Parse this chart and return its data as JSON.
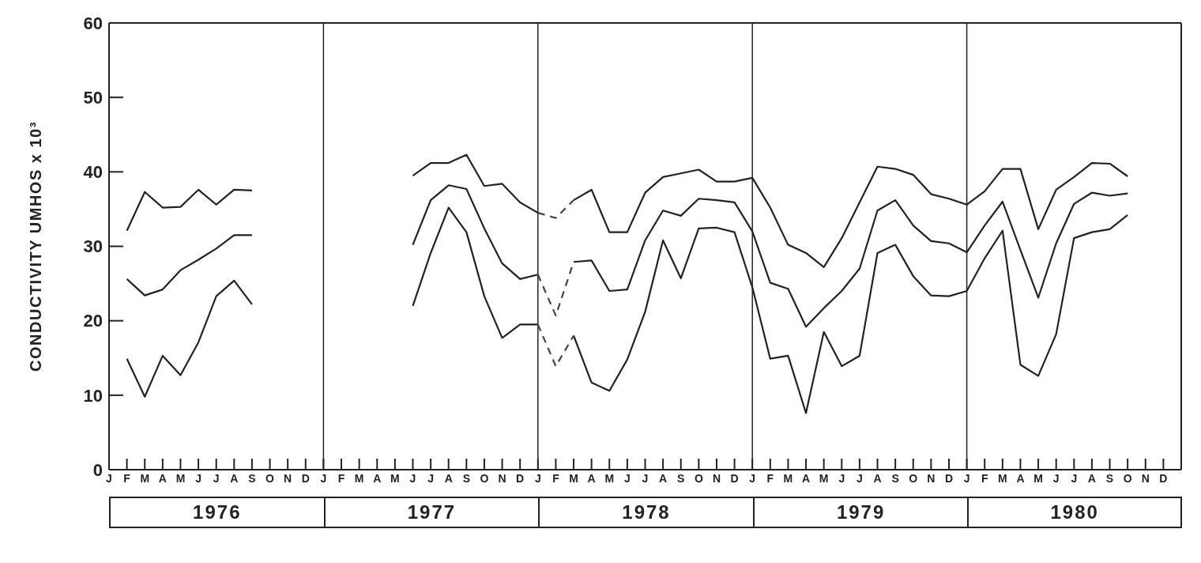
{
  "chart_data": {
    "type": "line",
    "ylabel": "CONDUCTIVITY UMHOS x 10³",
    "categories": [
      "J",
      "F",
      "M",
      "A",
      "M",
      "J",
      "J",
      "A",
      "S",
      "O",
      "N",
      "D",
      "J",
      "F",
      "M",
      "A",
      "M",
      "J",
      "J",
      "A",
      "S",
      "O",
      "N",
      "D",
      "J",
      "F",
      "M",
      "A",
      "M",
      "J",
      "J",
      "A",
      "S",
      "O",
      "N",
      "D",
      "J",
      "F",
      "M",
      "A",
      "M",
      "J",
      "J",
      "A",
      "S",
      "O",
      "N",
      "D",
      "J",
      "F",
      "M",
      "A",
      "M",
      "J",
      "J",
      "A",
      "S",
      "O",
      "N",
      "D"
    ],
    "annotations": [
      "1976",
      "1977",
      "1978",
      "1979",
      "1980"
    ],
    "ylim": [
      0,
      60
    ],
    "yticks": [
      0,
      10,
      20,
      30,
      40,
      50,
      60
    ],
    "grid": "x",
    "marker": "none",
    "series": [
      {
        "color": "#222222",
        "line_style": "solid",
        "values": [
          null,
          32.1,
          37.3,
          35.2,
          35.3,
          37.6,
          35.6,
          37.6,
          37.5,
          null,
          null,
          null,
          null,
          null,
          null,
          null,
          null,
          39.5,
          41.2,
          41.2,
          42.3,
          38.1,
          38.4,
          35.9,
          34.5,
          null,
          36.2,
          37.6,
          31.9,
          31.9,
          37.2,
          39.3,
          39.8,
          40.3,
          38.7,
          38.7,
          39.2,
          35.2,
          30.2,
          29.1,
          27.2,
          31.1,
          35.9,
          40.7,
          40.4,
          39.6,
          37.0,
          36.4,
          35.6,
          37.4,
          40.4,
          40.4,
          32.3,
          37.6,
          39.3,
          41.2,
          41.1,
          39.4,
          null,
          null
        ]
      },
      {
        "color": "#222222",
        "line_style": "solid",
        "values": [
          null,
          25.6,
          23.4,
          24.2,
          26.8,
          28.2,
          29.7,
          31.5,
          31.5,
          null,
          null,
          null,
          null,
          null,
          null,
          null,
          null,
          30.2,
          36.2,
          38.2,
          37.7,
          32.4,
          27.7,
          25.6,
          26.2,
          null,
          27.9,
          28.1,
          24.0,
          24.2,
          30.8,
          34.8,
          34.1,
          36.4,
          36.2,
          35.9,
          32.0,
          25.1,
          24.3,
          19.2,
          21.7,
          24.0,
          27.0,
          34.8,
          36.2,
          32.8,
          30.7,
          30.4,
          29.2,
          32.8,
          36.0,
          29.5,
          23.1,
          30.4,
          35.7,
          37.2,
          36.8,
          37.1,
          null,
          null
        ]
      },
      {
        "color": "#222222",
        "line_style": "solid",
        "values": [
          null,
          14.9,
          9.8,
          15.3,
          12.7,
          17.1,
          23.3,
          25.4,
          22.2,
          null,
          null,
          null,
          null,
          null,
          null,
          null,
          null,
          22.0,
          29.1,
          35.2,
          31.9,
          23.3,
          17.7,
          19.5,
          19.5,
          null,
          18.0,
          11.7,
          10.6,
          14.8,
          21.2,
          30.8,
          25.7,
          32.4,
          32.5,
          31.9,
          24.5,
          14.9,
          15.3,
          7.6,
          18.5,
          13.9,
          15.3,
          29.1,
          30.2,
          26.0,
          23.4,
          23.3,
          24.0,
          28.4,
          32.1,
          14.1,
          12.6,
          18.2,
          31.1,
          31.9,
          32.3,
          34.2,
          null,
          null
        ]
      },
      {
        "color": "#444444",
        "line_style": "dashed",
        "values": [
          null,
          null,
          null,
          null,
          null,
          null,
          null,
          null,
          null,
          null,
          null,
          null,
          null,
          null,
          null,
          null,
          null,
          null,
          null,
          null,
          null,
          null,
          null,
          null,
          34.5,
          33.8,
          36.2,
          null,
          null,
          null,
          null,
          null,
          null,
          null,
          null,
          null,
          null,
          null,
          null,
          null,
          null,
          null,
          null,
          null,
          null,
          null,
          null,
          null,
          null,
          null,
          null,
          null,
          null,
          null,
          null,
          null,
          null,
          null,
          null,
          null
        ]
      },
      {
        "color": "#454545",
        "line_style": "dashed",
        "values": [
          null,
          null,
          null,
          null,
          null,
          null,
          null,
          null,
          null,
          null,
          null,
          null,
          null,
          null,
          null,
          null,
          null,
          null,
          null,
          null,
          null,
          null,
          null,
          null,
          26.2,
          20.7,
          27.9,
          null,
          null,
          null,
          null,
          null,
          null,
          null,
          null,
          null,
          null,
          null,
          null,
          null,
          null,
          null,
          null,
          null,
          null,
          null,
          null,
          null,
          null,
          null,
          null,
          null,
          null,
          null,
          null,
          null,
          null,
          null,
          null,
          null
        ]
      },
      {
        "color": "#464646",
        "line_style": "dashed",
        "values": [
          null,
          null,
          null,
          null,
          null,
          null,
          null,
          null,
          null,
          null,
          null,
          null,
          null,
          null,
          null,
          null,
          null,
          null,
          null,
          null,
          null,
          null,
          null,
          null,
          19.5,
          13.9,
          18.0,
          null,
          null,
          null,
          null,
          null,
          null,
          null,
          null,
          null,
          null,
          null,
          null,
          null,
          null,
          null,
          null,
          null,
          null,
          null,
          null,
          null,
          null,
          null,
          null,
          null,
          null,
          null,
          null,
          null,
          null,
          null,
          null,
          null
        ]
      }
    ]
  }
}
